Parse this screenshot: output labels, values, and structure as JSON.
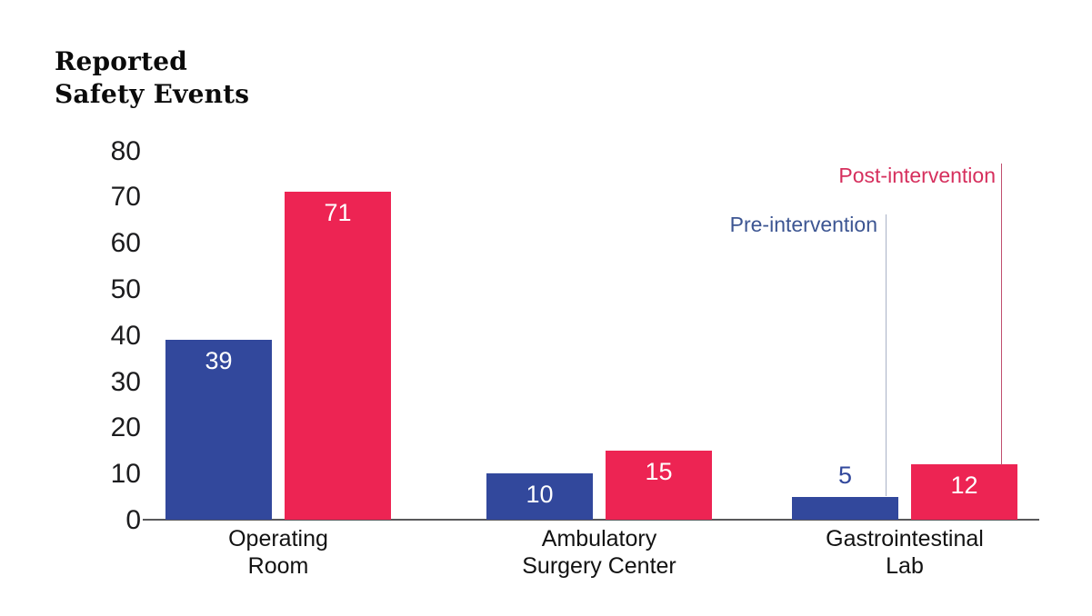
{
  "title": {
    "line1": "Reported",
    "line2": "Safety Events"
  },
  "chart_data": {
    "type": "bar",
    "title": "Reported Safety Events",
    "categories": [
      "Operating Room",
      "Ambulatory Surgery Center",
      "Gastrointestinal Lab"
    ],
    "category_label_lines": [
      [
        "Operating",
        "Room"
      ],
      [
        "Ambulatory",
        "Surgery Center"
      ],
      [
        "Gastrointestinal",
        "Lab"
      ]
    ],
    "series": [
      {
        "name": "Pre-intervention",
        "values": [
          39,
          10,
          5
        ],
        "color": "#32489C",
        "label_color": "#3C5592",
        "leader_line_color": "#A9B2C6"
      },
      {
        "name": "Post-intervention",
        "values": [
          71,
          15,
          12
        ],
        "color": "#ED2453",
        "label_color": "#D62F5D",
        "leader_line_color": "#C14E6E"
      }
    ],
    "ylim": [
      0,
      80
    ],
    "yticks": [
      0,
      10,
      20,
      30,
      40,
      50,
      60,
      70,
      80
    ],
    "grid": false,
    "legend_position": "annotated-labels-with-leader-lines-top-right",
    "value_labels_shown": true
  },
  "colors": {
    "background": "#FFFFFF",
    "axis_line": "#59595B",
    "tick_label": "#1C1C1E",
    "category_label": "#121212",
    "bar_value_label_inside": "#FFFFFF"
  }
}
